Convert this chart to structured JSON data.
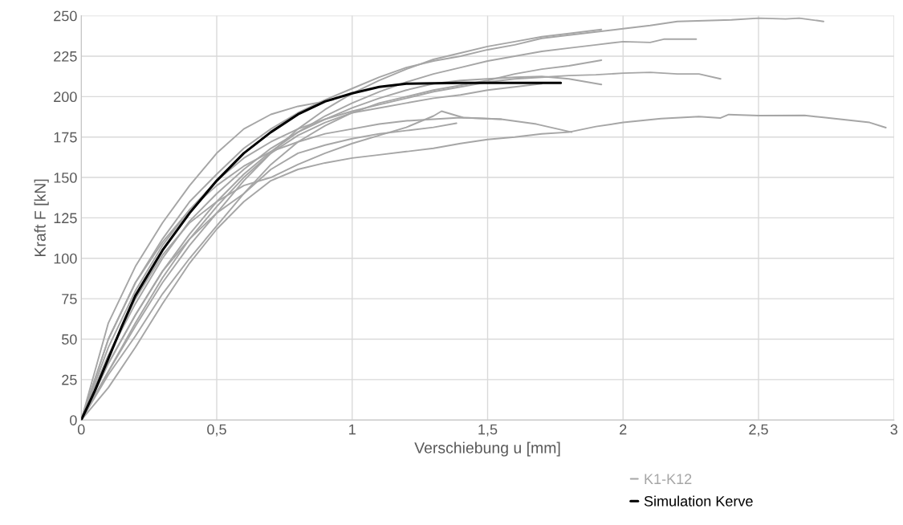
{
  "chart_data": {
    "type": "line",
    "xlabel": "Verschiebung u [mm]",
    "ylabel": "Kraft F [kN]",
    "xlim": [
      0,
      3
    ],
    "xticks": [
      0,
      {
        "value": 0.5,
        "label": "0,5"
      },
      1,
      {
        "value": 1.5,
        "label": "1,5"
      },
      2,
      {
        "value": 2.5,
        "label": "2,5"
      },
      3
    ],
    "ylim": [
      0,
      250
    ],
    "yticks": [
      0,
      25,
      50,
      75,
      100,
      125,
      150,
      175,
      200,
      225,
      250
    ],
    "grid": true,
    "legend": "bottom right",
    "marker": "none",
    "line_style": "solid",
    "series": [
      {
        "name": "K1-K12",
        "color": "#a6a6a6",
        "x": [
          0,
          0.05,
          0.1,
          0.2,
          0.3,
          0.4,
          0.5,
          0.6,
          0.7,
          0.8,
          0.9,
          1.0,
          1.1,
          1.2,
          1.3,
          1.4,
          1.5,
          1.6,
          1.7,
          1.8,
          1.9,
          2.0,
          2.1,
          2.2,
          2.3,
          2.4,
          2.5,
          2.6,
          2.65,
          2.74
        ],
        "values": [
          0,
          25,
          50,
          85,
          112,
          135,
          152,
          168,
          180,
          190,
          198,
          205,
          212,
          218,
          222,
          225,
          229,
          232,
          236,
          238,
          240,
          242,
          244,
          246.5,
          247,
          247.5,
          248.5,
          248,
          248.5,
          246.5
        ]
      },
      {
        "color": "#a6a6a6",
        "x": [
          0,
          0.1,
          0.2,
          0.3,
          0.4,
          0.5,
          0.6,
          0.7,
          0.8,
          0.9,
          1.0,
          1.1,
          1.2,
          1.3,
          1.4,
          1.5,
          1.6,
          1.7,
          1.8,
          1.9,
          2.0,
          2.1,
          2.15,
          2.27
        ],
        "values": [
          0,
          35,
          65,
          92,
          115,
          135,
          152,
          166,
          178,
          188,
          196,
          203,
          209,
          214,
          218,
          222,
          225,
          228,
          230,
          232,
          234,
          233.5,
          235.5,
          235.5
        ]
      },
      {
        "color": "#a6a6a6",
        "x": [
          0,
          0.1,
          0.2,
          0.3,
          0.4,
          0.5,
          0.6,
          0.7,
          0.8,
          0.9,
          1.0,
          1.1,
          1.2,
          1.3,
          1.4,
          1.5,
          1.6,
          1.7,
          1.8,
          1.92
        ],
        "values": [
          0,
          30,
          58,
          85,
          108,
          128,
          148,
          165,
          180,
          192,
          202,
          210,
          217,
          223,
          227,
          231,
          234,
          237,
          239,
          241.5
        ]
      },
      {
        "color": "#a6a6a6",
        "x": [
          0,
          0.1,
          0.2,
          0.3,
          0.4,
          0.5,
          0.6,
          0.7,
          0.8,
          0.9,
          1.0,
          1.1,
          1.2,
          1.3,
          1.4,
          1.5,
          1.6,
          1.7,
          1.8,
          1.92
        ],
        "values": [
          0,
          28,
          52,
          78,
          100,
          120,
          140,
          158,
          172,
          182,
          190,
          196,
          200,
          204,
          207,
          210,
          214,
          217,
          219,
          222.5
        ]
      },
      {
        "color": "#a6a6a6",
        "x": [
          0,
          0.1,
          0.2,
          0.3,
          0.4,
          0.5,
          0.6,
          0.7,
          0.8,
          0.9,
          1.0,
          1.1,
          1.2,
          1.3,
          1.4,
          1.5,
          1.6,
          1.7,
          1.8,
          1.9,
          2.0,
          2.1,
          2.2,
          2.28,
          2.36
        ],
        "values": [
          0,
          45,
          80,
          108,
          130,
          148,
          162,
          172,
          180,
          186,
          191,
          195,
          199,
          203,
          206,
          209,
          211,
          212,
          213,
          213.5,
          214.5,
          215,
          214,
          214,
          211
        ]
      },
      {
        "color": "#a6a6a6",
        "x": [
          0,
          0.1,
          0.2,
          0.3,
          0.4,
          0.5,
          0.6,
          0.7,
          0.8,
          0.9,
          1.0,
          1.1,
          1.2,
          1.3,
          1.4,
          1.5,
          1.6,
          1.7,
          1.8,
          1.92
        ],
        "values": [
          0,
          40,
          72,
          100,
          123,
          140,
          155,
          168,
          178,
          186,
          193,
          199,
          204,
          208,
          210,
          211,
          212,
          212.5,
          211,
          207.5
        ]
      },
      {
        "color": "#a6a6a6",
        "x": [
          0,
          0.1,
          0.2,
          0.3,
          0.4,
          0.5,
          0.6,
          0.7,
          0.8,
          0.9,
          1.0,
          1.1,
          1.2,
          1.3,
          1.4,
          1.5,
          1.6,
          1.7,
          1.8,
          1.9,
          2.0,
          2.14,
          2.28,
          2.36,
          2.39,
          2.5,
          2.67,
          2.74,
          2.91,
          2.97
        ],
        "values": [
          0,
          20,
          45,
          72,
          97,
          118,
          135,
          148,
          155,
          159,
          162,
          164,
          166,
          168,
          171,
          173.5,
          175,
          177,
          178,
          181.5,
          184,
          186.4,
          187.6,
          186.8,
          188.9,
          188.3,
          188.4,
          187.1,
          184,
          180.8
        ]
      },
      {
        "color": "#a6a6a6",
        "x": [
          0,
          0.1,
          0.2,
          0.3,
          0.4,
          0.5,
          0.6,
          0.7,
          0.8,
          0.9,
          1.0,
          1.1,
          1.2,
          1.3,
          1.33,
          1.41,
          1.55,
          1.68,
          1.81
        ],
        "values": [
          0,
          40,
          75,
          102,
          122,
          135,
          145,
          150,
          158,
          165,
          171,
          176,
          181,
          188,
          191,
          187,
          186,
          183,
          178
        ]
      },
      {
        "color": "#a6a6a6",
        "x": [
          0,
          0.1,
          0.2,
          0.3,
          0.4,
          0.5,
          0.6,
          0.7,
          0.8,
          0.9,
          1.0,
          1.1,
          1.2,
          1.3,
          1.385
        ],
        "values": [
          0,
          35,
          65,
          92,
          112,
          128,
          140,
          155,
          165,
          170,
          174,
          177,
          179,
          181,
          183.5
        ]
      },
      {
        "color": "#a6a6a6",
        "x": [
          0,
          0.1,
          0.2,
          0.3,
          0.4,
          0.5,
          0.6,
          0.7,
          0.8,
          0.9,
          1.0,
          1.1,
          1.2,
          1.3,
          1.4,
          1.55
        ],
        "values": [
          0,
          50,
          85,
          110,
          130,
          145,
          157,
          166,
          172,
          177,
          180,
          183,
          185,
          186,
          187,
          186
        ]
      },
      {
        "color": "#a6a6a6",
        "x": [
          0,
          0.05,
          0.1,
          0.2,
          0.3,
          0.4,
          0.5,
          0.6,
          0.7,
          0.8,
          0.93
        ],
        "values": [
          0,
          30,
          60,
          95,
          122,
          145,
          165,
          180,
          189,
          194,
          198
        ]
      },
      {
        "color": "#a6a6a6",
        "x": [
          0,
          0.1,
          0.2,
          0.3,
          0.4,
          0.5,
          0.6,
          0.7,
          0.8,
          0.9,
          1.0,
          1.1,
          1.2,
          1.3,
          1.4,
          1.5,
          1.6,
          1.7
        ],
        "values": [
          0,
          30,
          60,
          88,
          112,
          132,
          150,
          165,
          176,
          184,
          190,
          193,
          196,
          199,
          201,
          204,
          206,
          208
        ]
      },
      {
        "name": "Simulation Kerve",
        "color": "#000000",
        "x": [
          0,
          0.05,
          0.1,
          0.15,
          0.2,
          0.3,
          0.4,
          0.5,
          0.6,
          0.7,
          0.8,
          0.9,
          1.0,
          1.1,
          1.2,
          1.4,
          1.6,
          1.77
        ],
        "values": [
          0,
          18,
          38,
          58,
          77,
          105,
          128,
          148,
          165,
          178,
          189,
          197,
          202,
          206,
          208,
          208.5,
          208.5,
          208.5
        ]
      }
    ]
  }
}
